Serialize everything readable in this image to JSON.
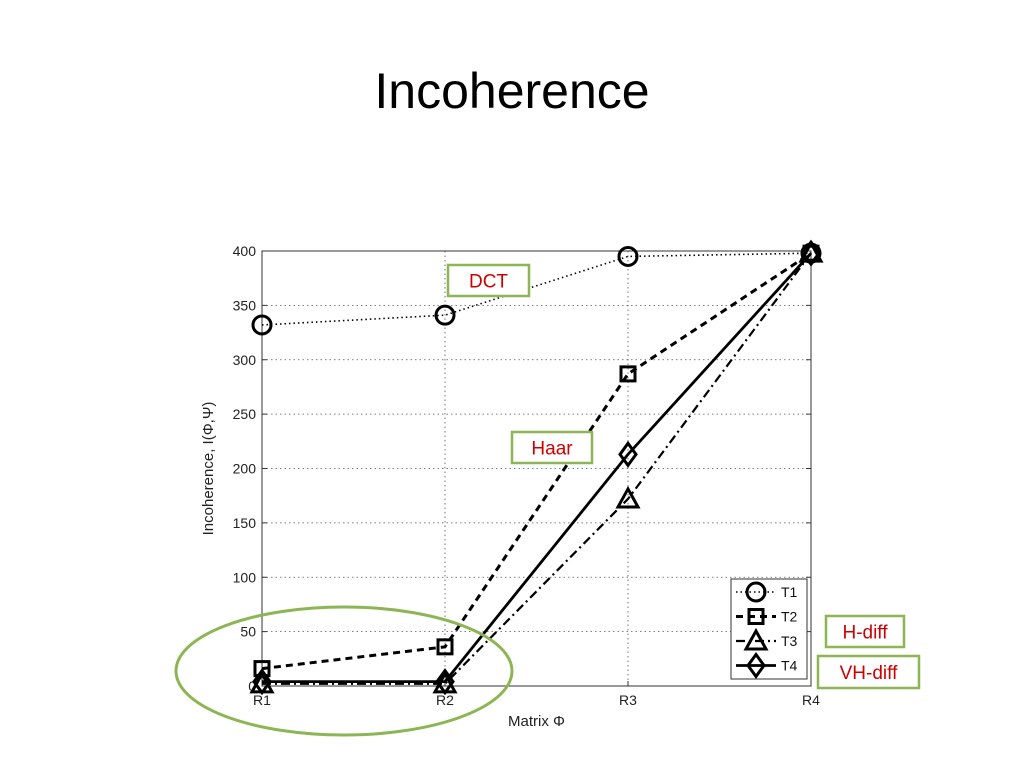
{
  "slide": {
    "title": "Incoherence"
  },
  "chart_data": {
    "type": "line",
    "categories": [
      "R1",
      "R2",
      "R3",
      "R4"
    ],
    "xlabel": "Matrix Φ",
    "ylabel": "Incoherence, I(Φ,Ψ)",
    "ylim": [
      0,
      400
    ],
    "yticks": [
      0,
      50,
      100,
      150,
      200,
      250,
      300,
      350,
      400
    ],
    "grid": true,
    "legend_position": "bottom-right",
    "series": [
      {
        "name": "T1",
        "values": [
          332,
          341,
          395,
          398
        ],
        "marker": "circle",
        "line_style": "dotted"
      },
      {
        "name": "T2",
        "values": [
          16,
          36,
          287,
          398
        ],
        "marker": "square",
        "line_style": "dashed"
      },
      {
        "name": "T3",
        "values": [
          2,
          2,
          172,
          398
        ],
        "marker": "triangle",
        "line_style": "dash-dot"
      },
      {
        "name": "T4",
        "values": [
          4,
          4,
          213,
          398
        ],
        "marker": "diamond",
        "line_style": "solid"
      }
    ],
    "annotations": [
      {
        "text": "DCT",
        "series": "T1"
      },
      {
        "text": "Haar",
        "series": "T4"
      },
      {
        "text": "H-diff",
        "series": "T3"
      },
      {
        "text": "VH-diff",
        "series": "T4"
      }
    ],
    "highlight": {
      "shape": "ellipse",
      "around": [
        "R1",
        "R2"
      ],
      "color": "#8db554"
    },
    "colors": {
      "lines": "#000000",
      "callout_text": "#d10000",
      "callout_border": "#8db554",
      "grid": "#555555"
    }
  }
}
